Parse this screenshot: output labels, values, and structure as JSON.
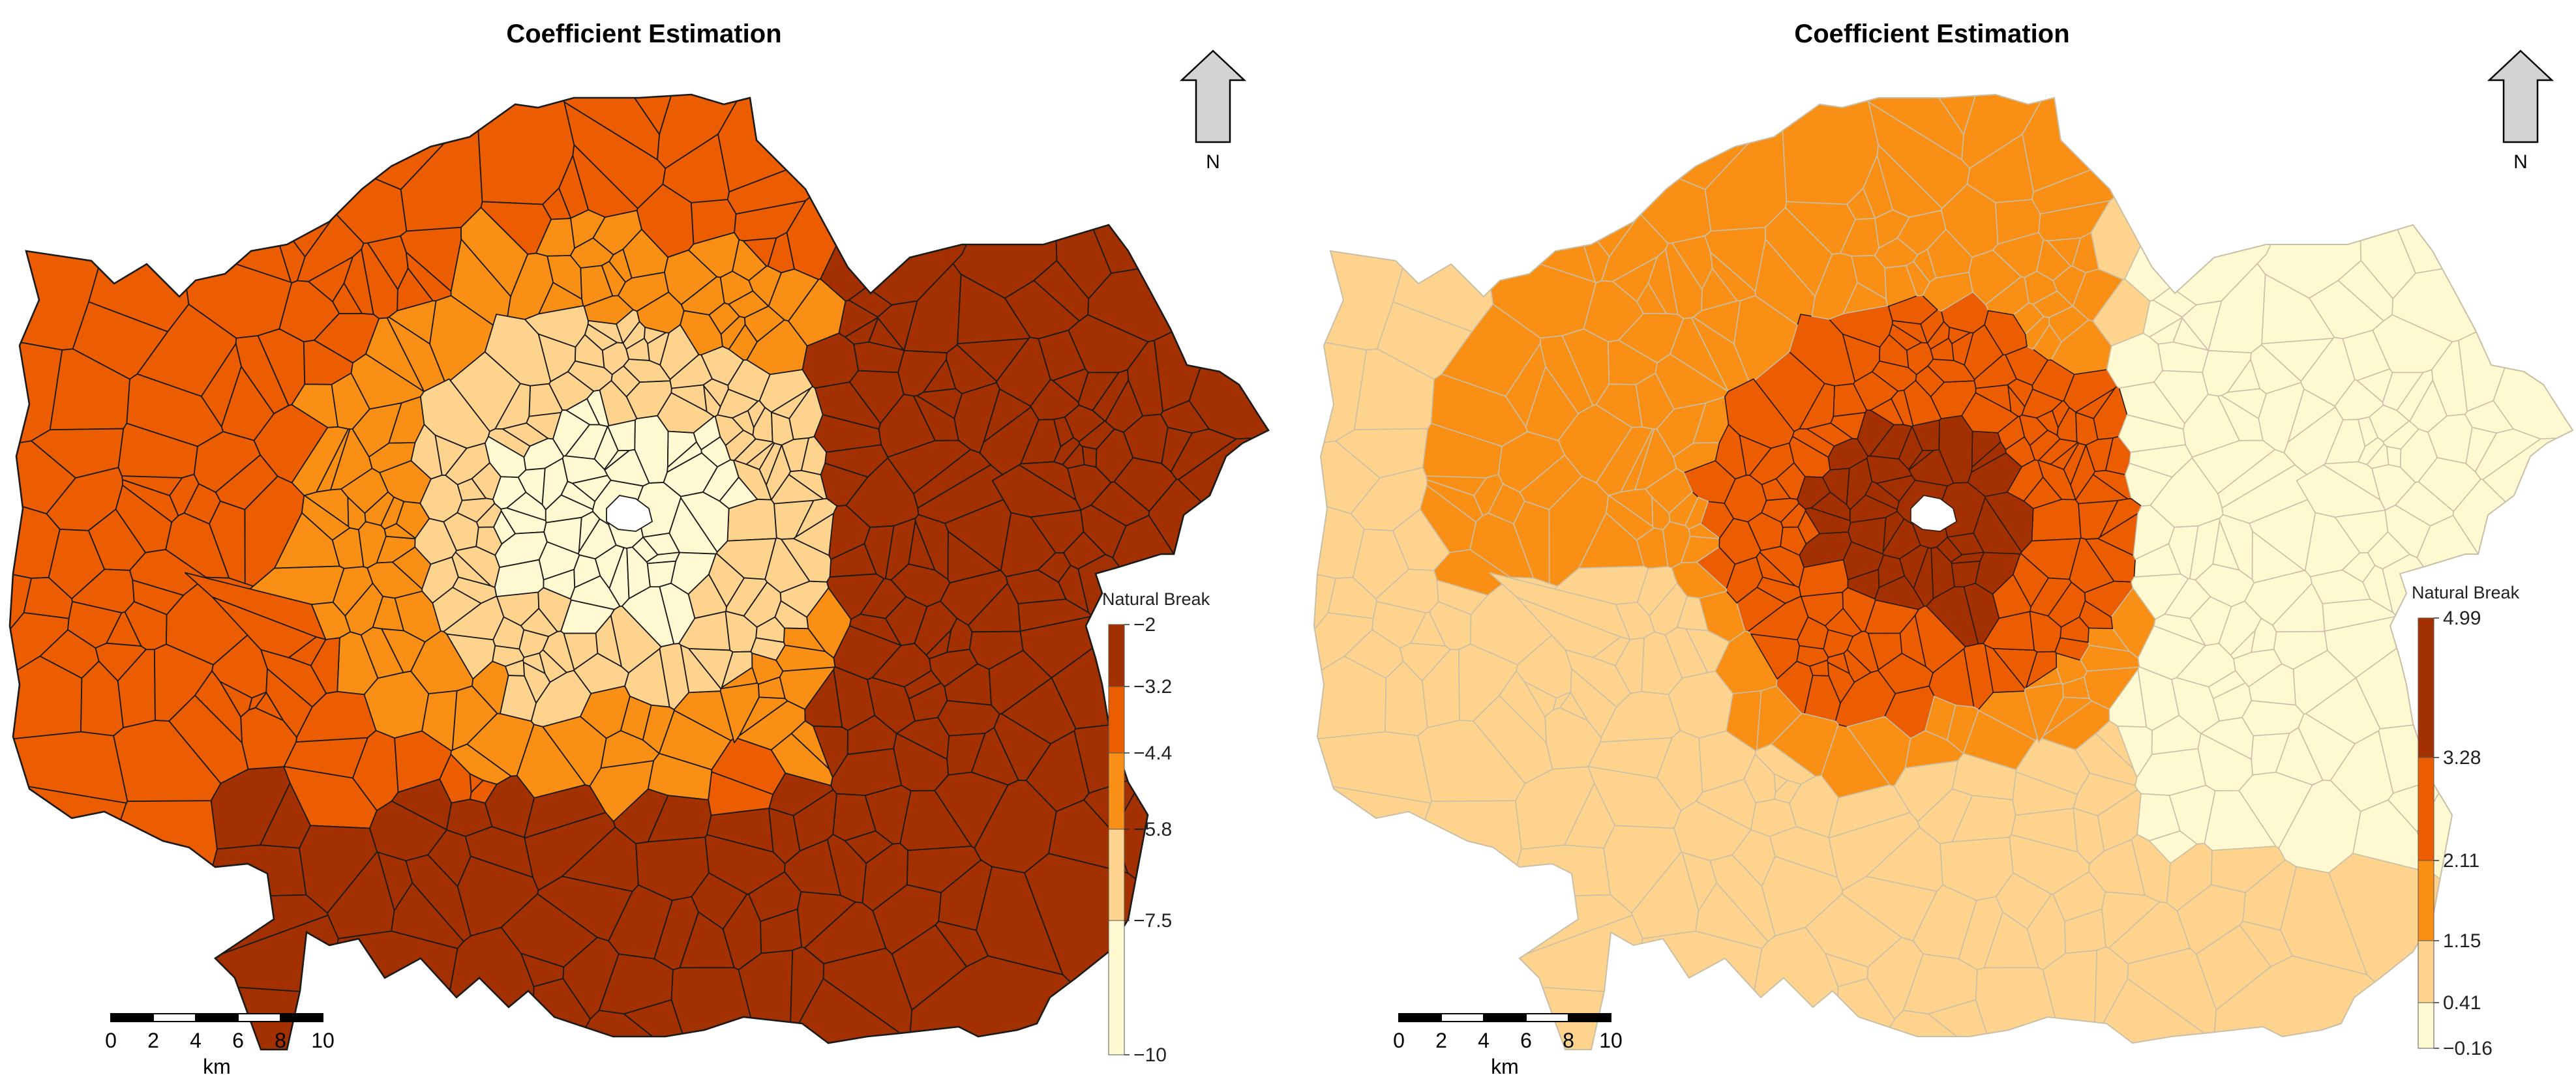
{
  "panels": [
    {
      "title": "Coefficient Estimation",
      "legend_title": "Natural Break",
      "legend_breaks": [
        "-2",
        "-3.2",
        "-4.4",
        "-5.8",
        "-7.5",
        "-10"
      ],
      "class_colors": [
        "#a33000",
        "#eb5d00",
        "#f98f14",
        "#fdd38e",
        "#fff9d2"
      ],
      "boundary_color": "#1a1a1a",
      "north_label": "N",
      "scale_ticks": [
        "0",
        "2",
        "4",
        "6",
        "8",
        "10"
      ],
      "scale_unit": "km"
    },
    {
      "title": "Coefficient Estimation",
      "legend_title": "Natural Break",
      "legend_breaks": [
        "4.99",
        "3.28",
        "2.11",
        "1.15",
        "0.41",
        "-0.16"
      ],
      "class_colors": [
        "#a33000",
        "#eb5d00",
        "#f98f14",
        "#fdd38e",
        "#fff9d2"
      ],
      "boundary_color": "#c9bfa6",
      "north_label": "N",
      "scale_ticks": [
        "0",
        "2",
        "4",
        "6",
        "8",
        "10"
      ],
      "scale_unit": "km"
    }
  ]
}
